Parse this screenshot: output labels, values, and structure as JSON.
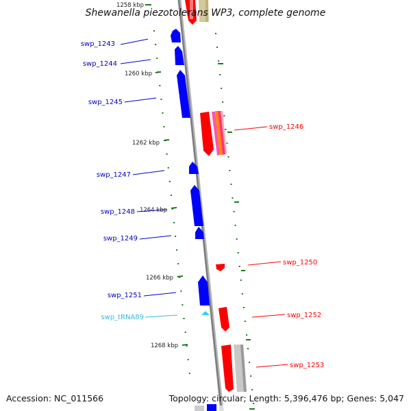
{
  "title": "Shewanella piezotolerans WP3, complete genome",
  "footer": {
    "accession": "Accession: NC_011566",
    "topology": "Topology: circular; Length: 5,396,476 bp; Genes: 5,047"
  },
  "colors": {
    "backbone": "#8a8a8a",
    "forward_gene": "#ff0000",
    "reverse_gene": "#0000ff",
    "trna": "#33ccff",
    "tick": "#1a7a1a",
    "forward_label": "#ff0000",
    "reverse_label": "#0000cc",
    "trna_label": "#33bbdd"
  },
  "ruler": [
    {
      "label": "1258 kbp"
    },
    {
      "label": "1260 kbp"
    },
    {
      "label": "1262 kbp"
    },
    {
      "label": "1264 kbp"
    },
    {
      "label": "1266 kbp"
    },
    {
      "label": "1268 kbp"
    }
  ],
  "genes": [
    {
      "name": "swp_1243",
      "strand": "reverse"
    },
    {
      "name": "swp_1244",
      "strand": "reverse"
    },
    {
      "name": "swp_1245",
      "strand": "reverse"
    },
    {
      "name": "swp_1246",
      "strand": "forward"
    },
    {
      "name": "swp_1247",
      "strand": "reverse"
    },
    {
      "name": "swp_1248",
      "strand": "reverse"
    },
    {
      "name": "swp_1249",
      "strand": "reverse"
    },
    {
      "name": "swp_1250",
      "strand": "forward"
    },
    {
      "name": "swp_1251",
      "strand": "reverse"
    },
    {
      "name": "swp_tRNA89",
      "strand": "reverse",
      "type": "tRNA"
    },
    {
      "name": "swp_1252",
      "strand": "forward"
    },
    {
      "name": "swp_1253",
      "strand": "forward"
    }
  ]
}
